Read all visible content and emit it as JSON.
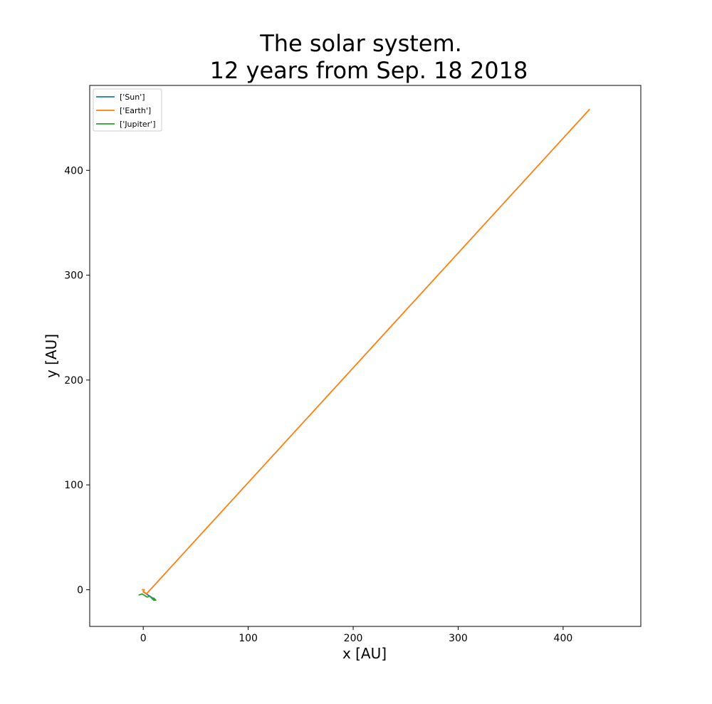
{
  "chart_data": {
    "type": "line",
    "title": "The solar system.",
    "subtitle": "12 years from Sep. 18 2018",
    "xlabel": "x [AU]",
    "ylabel": "y [AU]",
    "xlim": [
      -51,
      474
    ],
    "ylim": [
      -35,
      481
    ],
    "xticks": [
      0,
      100,
      200,
      300,
      400
    ],
    "yticks": [
      0,
      100,
      200,
      300,
      400
    ],
    "grid": false,
    "legend_position": "top-left",
    "series": [
      {
        "name": "['Sun']",
        "color": "#1f77b4",
        "points": [
          [
            0,
            -2
          ],
          [
            3,
            -4
          ],
          [
            6,
            -6
          ],
          [
            9,
            -8
          ],
          [
            11,
            -9
          ]
        ]
      },
      {
        "name": "['Earth']",
        "color": "#ff7f0e",
        "points": [
          [
            -1,
            0
          ],
          [
            1,
            0
          ],
          [
            0,
            -2
          ],
          [
            2,
            -3
          ],
          [
            3,
            -4
          ],
          [
            425,
            458
          ]
        ]
      },
      {
        "name": "['Jupiter']",
        "color": "#2ca02c",
        "points": [
          [
            -4,
            -5
          ],
          [
            -1,
            -4
          ],
          [
            2,
            -6
          ],
          [
            4,
            -7
          ],
          [
            6,
            -6
          ],
          [
            8,
            -8
          ],
          [
            10,
            -10
          ],
          [
            12,
            -10
          ],
          [
            10,
            -8
          ]
        ]
      }
    ]
  }
}
